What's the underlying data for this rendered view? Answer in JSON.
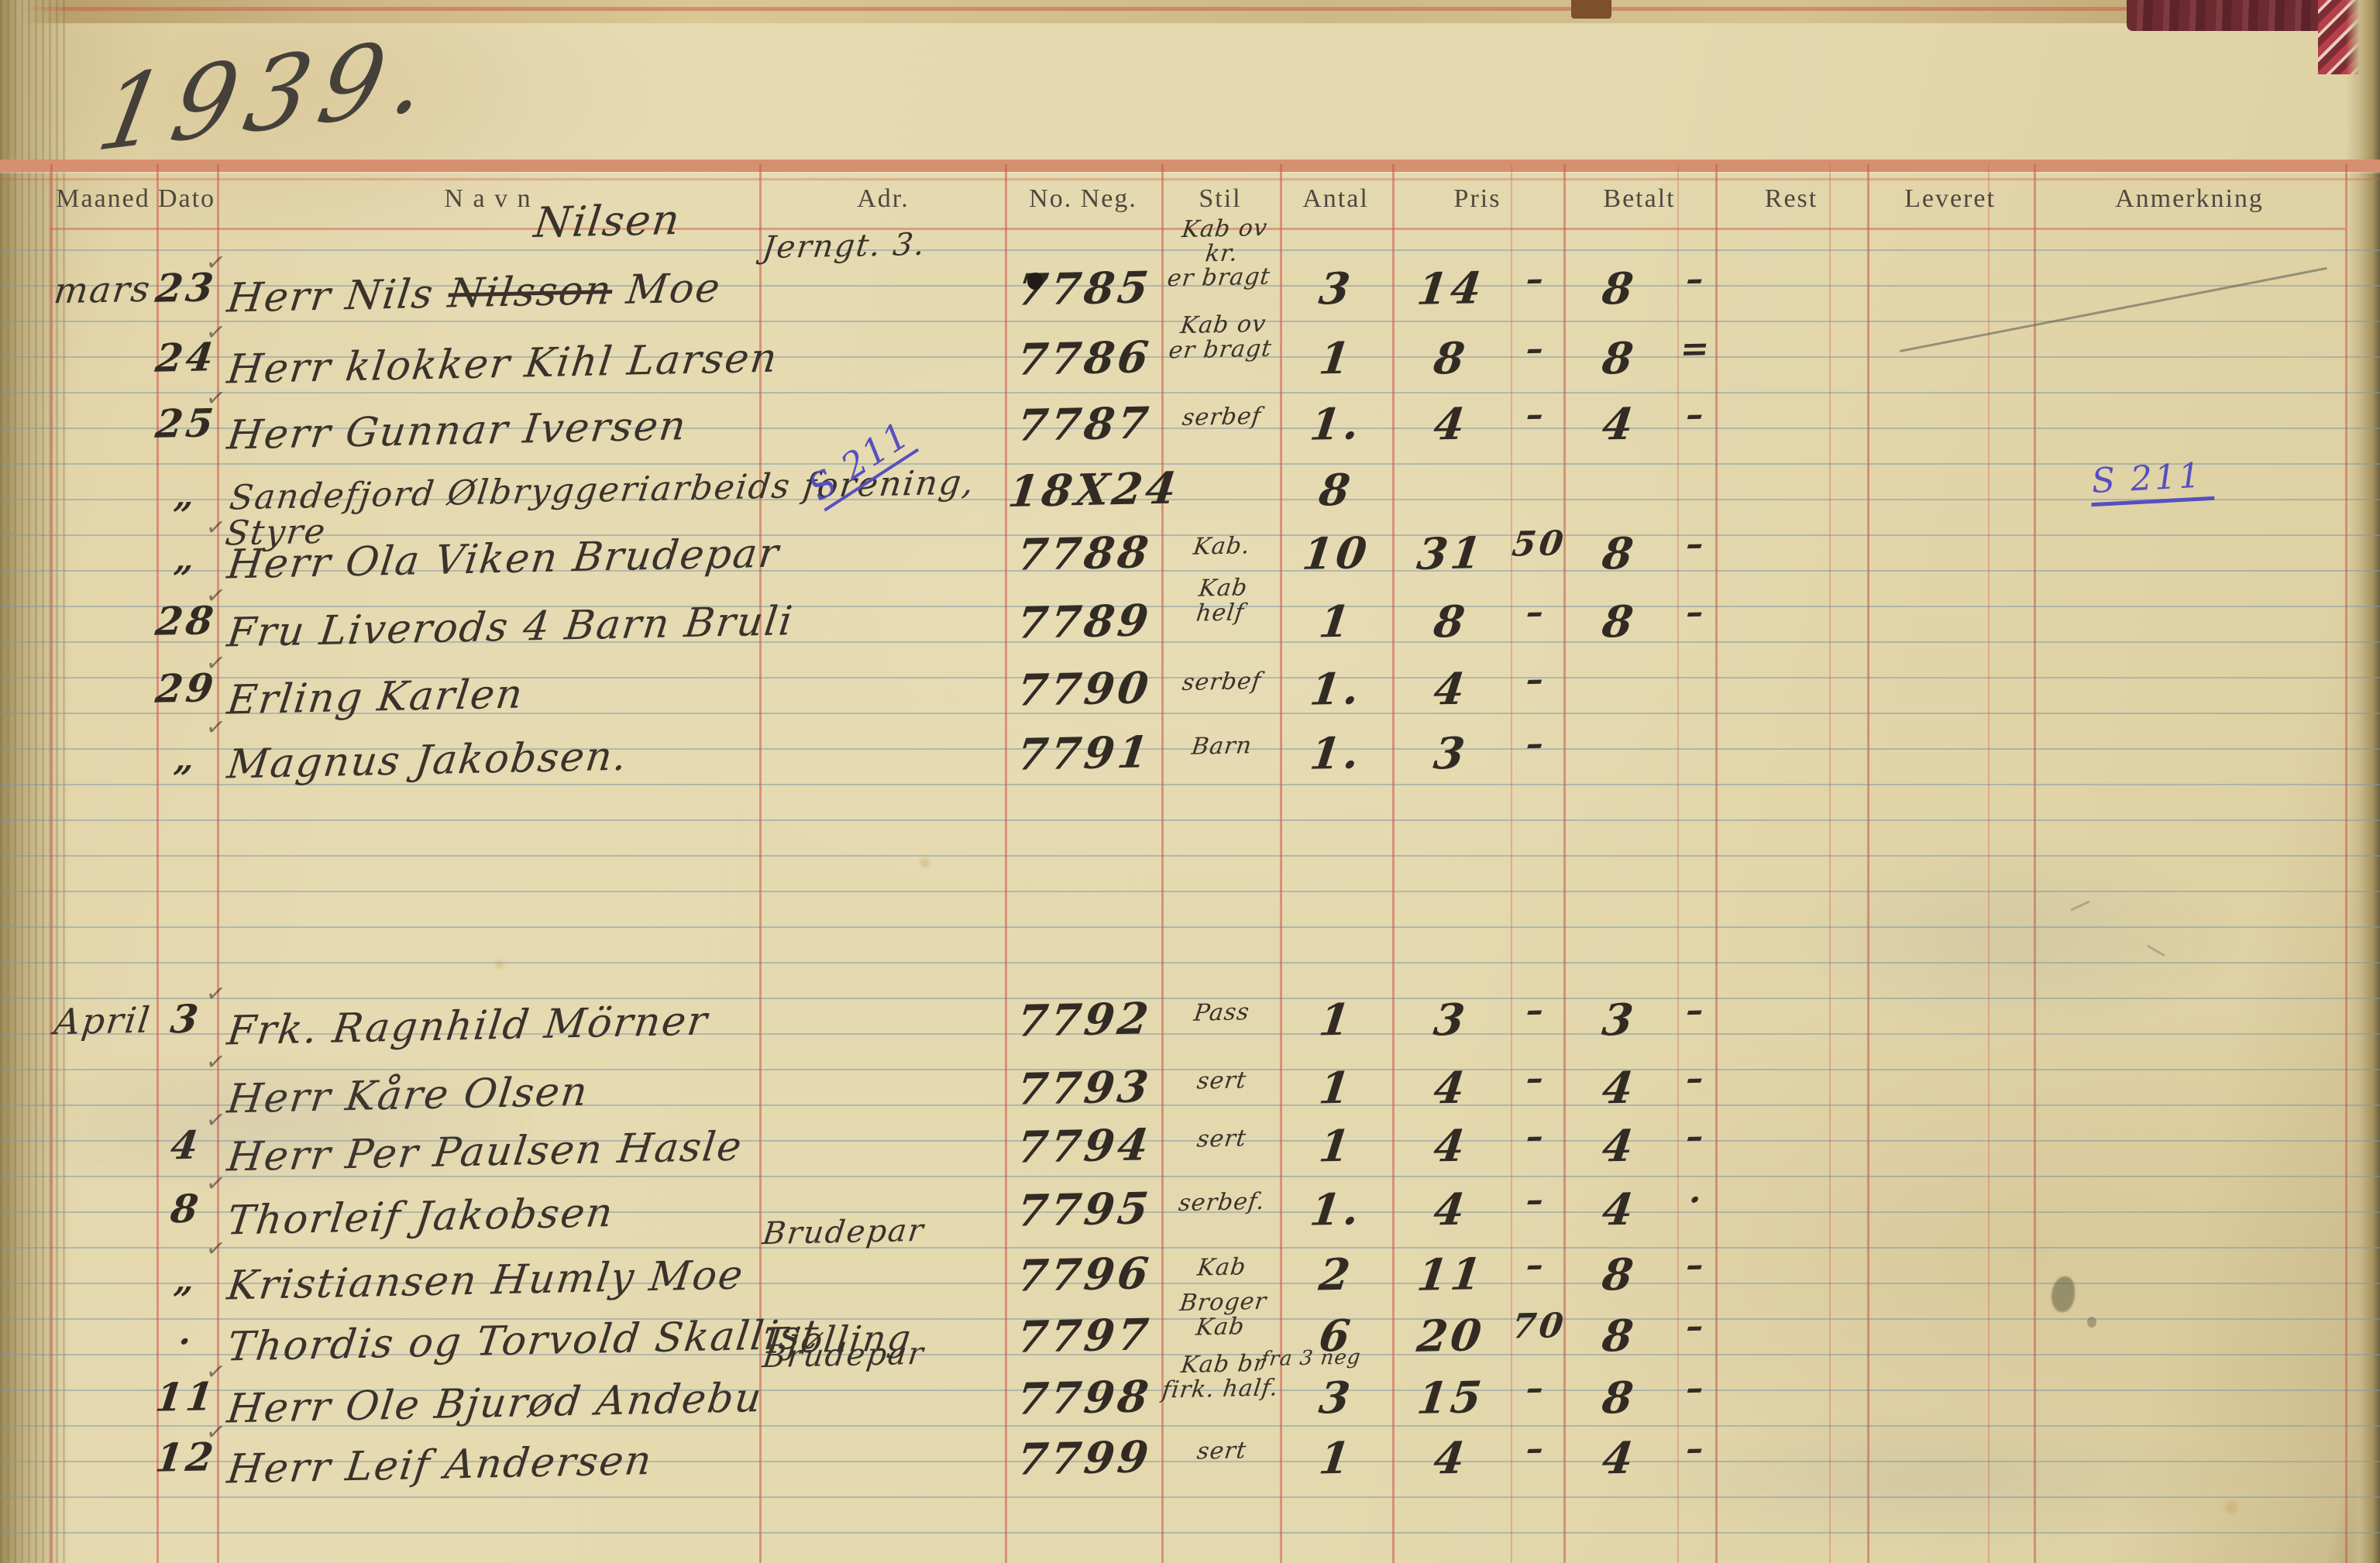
{
  "page": {
    "year": "1939."
  },
  "header": {
    "columns": [
      "Maaned",
      "Dato",
      "N a v n",
      "Adr.",
      "No. Neg.",
      "Stil",
      "Antal",
      "Pris",
      "Betalt",
      "Rest",
      "Leveret",
      "Anmerkning"
    ]
  },
  "annotations": {
    "stil_note": "S 211",
    "anmerkning_note": "S 211"
  },
  "rows": [
    {
      "maaned": "mars",
      "dato": "23",
      "tick": true,
      "navn_parts": [
        "Herr Nils ",
        "Nilsson",
        " Moe"
      ],
      "navn_above": "Nilsen",
      "adr_above": "Jerngt. 3.",
      "no_neg": "7785",
      "stil": "Kab ov\nkr.\ner bragt",
      "antal": "3",
      "pris": {
        "kr": "14",
        "ore": "–"
      },
      "betalt": {
        "kr": "8",
        "ore": "–"
      }
    },
    {
      "dato": "24",
      "tick": true,
      "navn": "Herr klokker Kihl Larsen",
      "no_neg": "7786",
      "stil": "Kab ov\ner bragt",
      "antal": "1",
      "pris": {
        "kr": "8",
        "ore": "–"
      },
      "betalt": {
        "kr": "8",
        "ore": "="
      }
    },
    {
      "dato": "25",
      "tick": true,
      "navn": "Herr Gunnar Iversen",
      "no_neg": "7787",
      "stil": "serbef",
      "antal": "1.",
      "pris": {
        "kr": "4",
        "ore": "–"
      },
      "betalt": {
        "kr": "4",
        "ore": "–"
      }
    },
    {
      "dato": "„",
      "navn": "Sandefjord Ølbryggeriarbeids forening, Styre",
      "no_neg": "18X24",
      "antal": "8"
    },
    {
      "dato": "„",
      "tick": true,
      "navn": "Herr Ola Viken Brudepar",
      "no_neg": "7788",
      "stil": "Kab.",
      "antal": "10",
      "pris": {
        "kr": "31",
        "ore": "50"
      },
      "betalt": {
        "kr": "8",
        "ore": "–"
      }
    },
    {
      "dato": "28",
      "tick": true,
      "navn": "Fru Liverods 4 Barn Bruli",
      "no_neg": "7789",
      "stil": "Kab\nhelf",
      "antal": "1",
      "pris": {
        "kr": "8",
        "ore": "–"
      },
      "betalt": {
        "kr": "8",
        "ore": "–"
      }
    },
    {
      "dato": "29",
      "tick": true,
      "navn": "Erling Karlen",
      "no_neg": "7790",
      "stil": "serbef",
      "antal": "1.",
      "pris": {
        "kr": "4",
        "ore": "–"
      }
    },
    {
      "dato": "„",
      "tick": true,
      "navn": "Magnus Jakobsen.",
      "no_neg": "7791",
      "stil": "Barn",
      "antal": "1.",
      "pris": {
        "kr": "3",
        "ore": "–"
      }
    },
    {
      "maaned": "April",
      "dato": "3",
      "tick": true,
      "navn": "Frk. Ragnhild Mörner",
      "no_neg": "7792",
      "stil": "Pass",
      "antal": "1",
      "pris": {
        "kr": "3",
        "ore": "–"
      },
      "betalt": {
        "kr": "3",
        "ore": "–"
      }
    },
    {
      "tick": true,
      "navn": "Herr Kåre Olsen",
      "no_neg": "7793",
      "stil": "sert",
      "antal": "1",
      "pris": {
        "kr": "4",
        "ore": "–"
      },
      "betalt": {
        "kr": "4",
        "ore": "–"
      }
    },
    {
      "dato": "4",
      "tick": true,
      "navn": "Herr Per Paulsen Hasle",
      "no_neg": "7794",
      "stil": "sert",
      "antal": "1",
      "pris": {
        "kr": "4",
        "ore": "–"
      },
      "betalt": {
        "kr": "4",
        "ore": "–"
      }
    },
    {
      "dato": "8",
      "tick": true,
      "navn": "Thorleif Jakobsen",
      "no_neg": "7795",
      "stil": "serbef.",
      "antal": "1.",
      "pris": {
        "kr": "4",
        "ore": "–"
      },
      "betalt": {
        "kr": "4",
        "ore": "·"
      }
    },
    {
      "dato": "„",
      "tick": true,
      "navn": "Kristiansen Humly Moe",
      "adr_above": "Brudepar",
      "no_neg": "7796",
      "stil": "Kab",
      "antal": "2",
      "pris": {
        "kr": "11",
        "ore": "–"
      },
      "betalt": {
        "kr": "8",
        "ore": "–"
      }
    },
    {
      "dato": "·",
      "navn": "Thordis og Torvold Skallist",
      "adr": "Tjølling",
      "no_neg": "7797",
      "stil": "Broger\nKab",
      "antal": "6",
      "pris": {
        "kr": "20",
        "ore": "70"
      },
      "betalt": {
        "kr": "8",
        "ore": "–"
      }
    },
    {
      "dato": "11",
      "tick": true,
      "navn": "Herr Ole Bjurød Andebu",
      "adr_above": "Brudepar",
      "no_neg": "7798",
      "stil": "Kab br\nfirk. half.",
      "antal_above": "fra 3 neg",
      "antal": "3",
      "pris": {
        "kr": "15",
        "ore": "–"
      },
      "betalt": {
        "kr": "8",
        "ore": "–"
      }
    },
    {
      "dato": "12",
      "tick": true,
      "navn": "Herr Leif Andersen",
      "no_neg": "7799",
      "stil": "sert",
      "antal": "1",
      "pris": {
        "kr": "4",
        "ore": "–"
      },
      "betalt": {
        "kr": "4",
        "ore": "–"
      }
    }
  ]
}
